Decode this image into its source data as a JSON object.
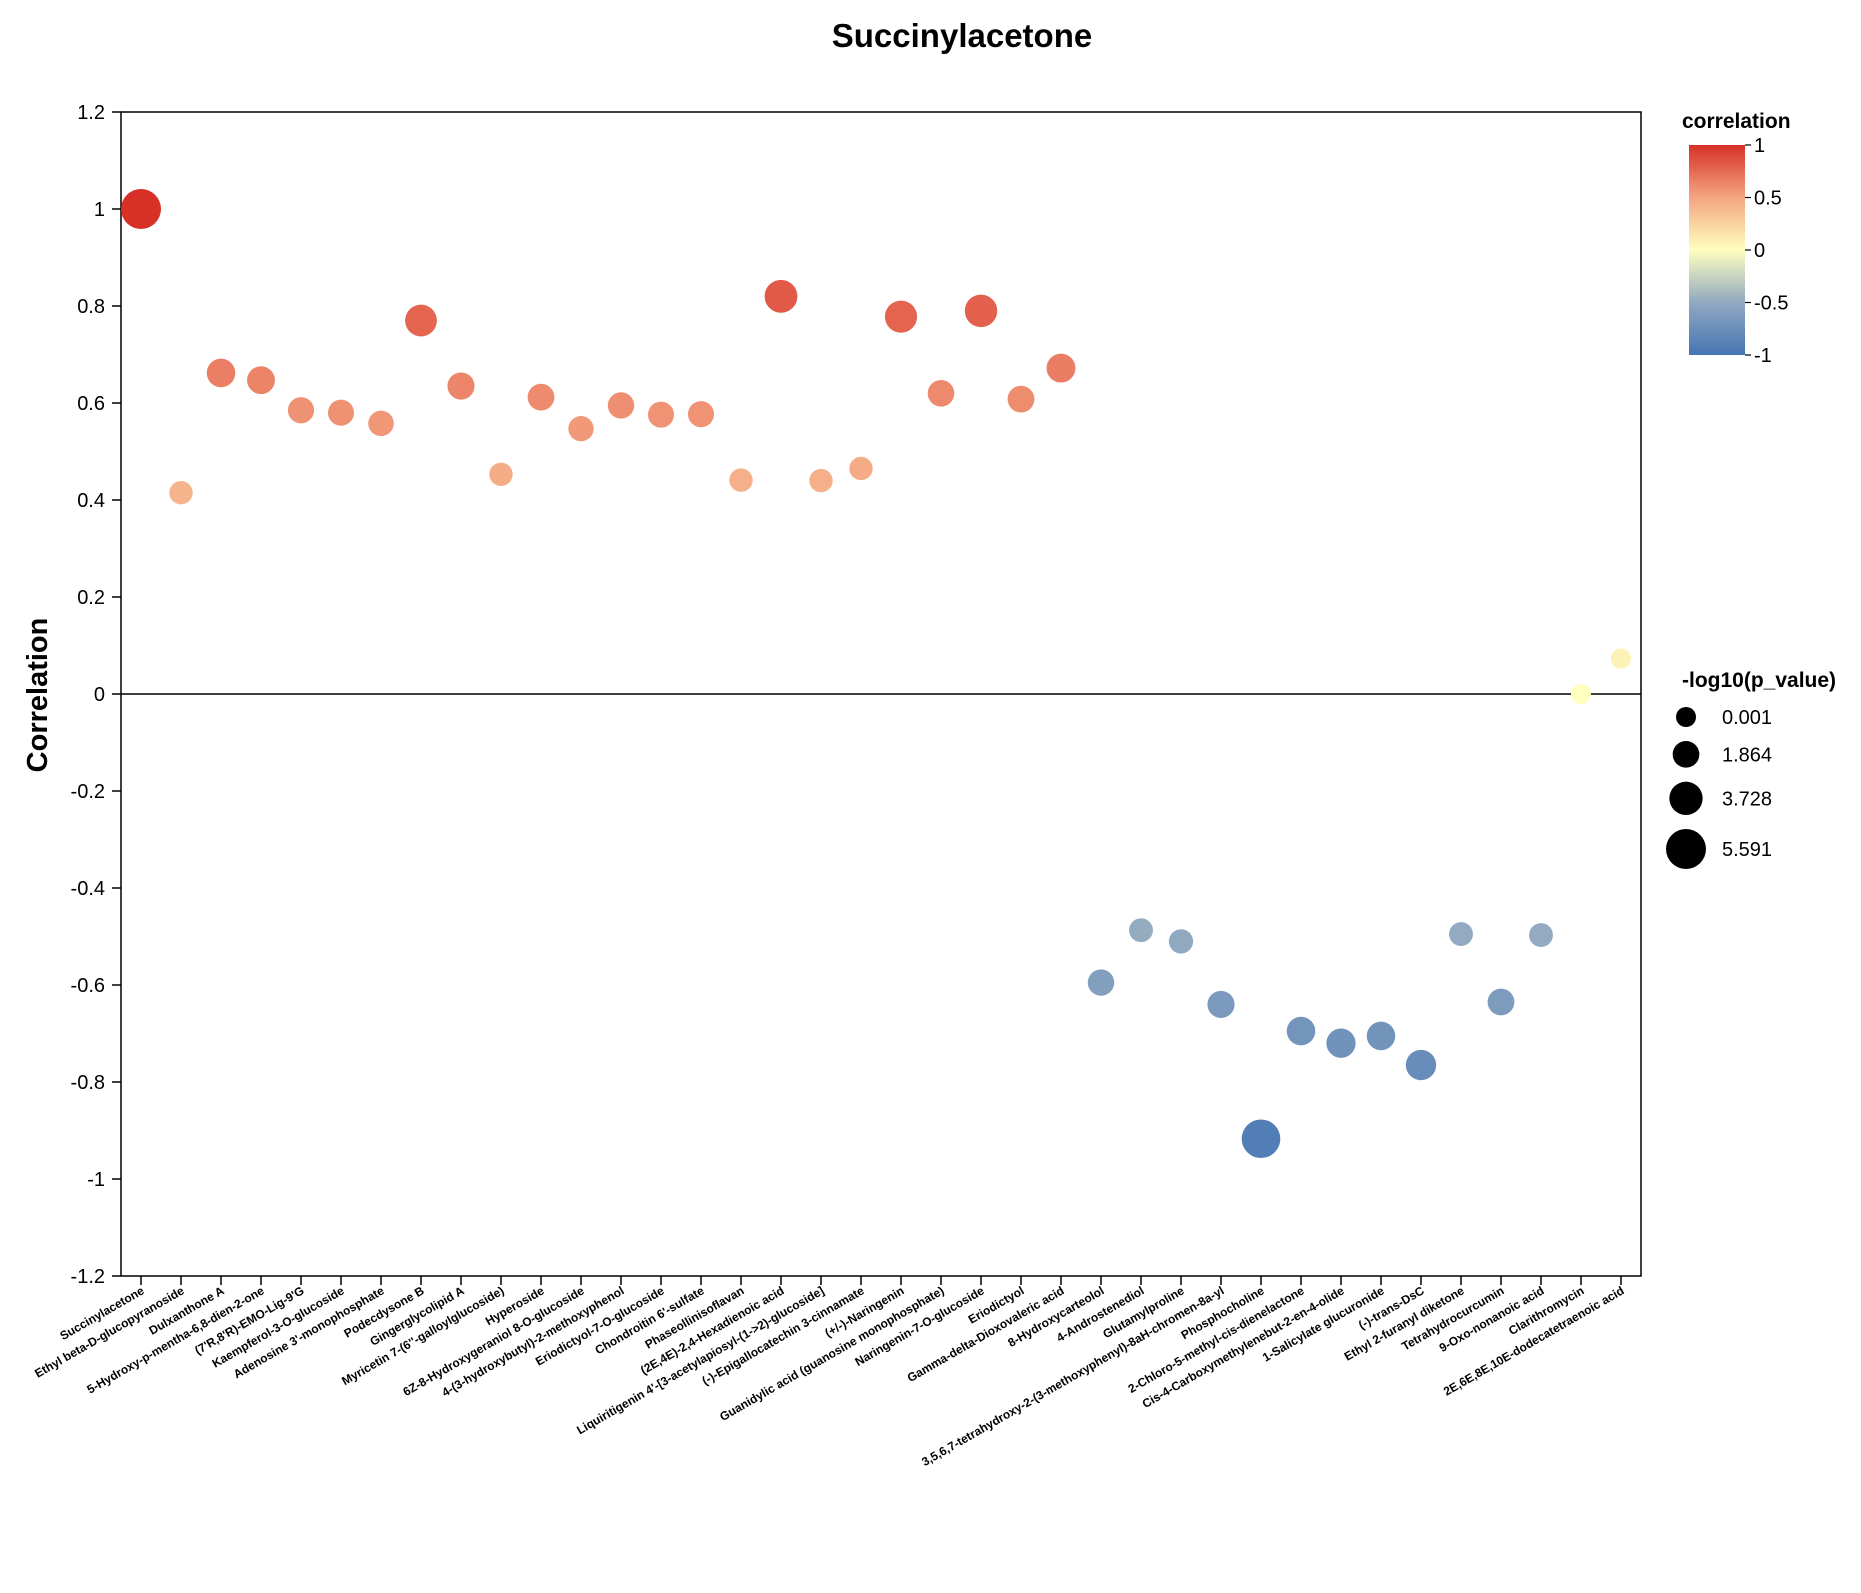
{
  "colors": {
    "positive": "#d73027",
    "neutral": "#ffffbf",
    "negative": "#4575b4",
    "axis": "#000000"
  },
  "chart_data": {
    "type": "scatter",
    "title": "Succinylacetone",
    "xlabel": "",
    "ylabel": "Correlation",
    "ylim": [
      -1.2,
      1.2
    ],
    "yticks": [
      1.2,
      1,
      0.8,
      0.6,
      0.4,
      0.2,
      0,
      -0.2,
      -0.4,
      -0.6,
      -0.8,
      -1,
      -1.2
    ],
    "ytick_labels": [
      "1.2",
      "1",
      "0.8",
      "0.6",
      "0.4",
      "0.2",
      "0",
      "-0.2",
      "-0.4",
      "-0.6",
      "-0.8",
      "-1",
      "-1.2"
    ],
    "reference_line_y": 0,
    "categories": [
      "Succinylacetone",
      "Ethyl beta-D-glucopyranoside",
      "Dulxanthone A",
      "5-Hydroxy-p-mentha-6,8-dien-2-one",
      "(7'R,8'R)-EMO-Lig-9'G",
      "Kaempferol-3-O-glucoside",
      "Adenosine 3'-monophosphate",
      "Podecdysone B",
      "Gingerglycolipid A",
      "Myricetin 7-(6''-galloylglucoside)",
      "Hyperoside",
      "6Z-8-Hydroxygeraniol 8-O-glucoside",
      "4-(3-hydroxybutyl)-2-methoxyphenol",
      "Eriodictyol-7-O-glucoside",
      "Chondroitin 6'-sulfate",
      "Phaseollinisoflavan",
      "(2E,4E)-2,4-Hexadienoic acid",
      "Liquiritigenin 4'-[3-acetylapiosyl-(1->2)-glucoside]",
      "(-)-Epigallocatechin 3-cinnamate",
      "(+/-)-Naringenin",
      "Guanidylic acid (guanosine monophosphate)",
      "Naringenin-7-O-glucoside",
      "Eriodictyol",
      "Gamma-delta-Dioxovaleric acid",
      "8-Hydroxycarteolol",
      "4-Androstenediol",
      "Glutamylproline",
      "3,5,6,7-tetrahydroxy-2-(3-methoxyphenyl)-8aH-chromen-8a-yl",
      "Phosphocholine",
      "2-Chloro-5-methyl-cis-dienelactone",
      "Cis-4-Carboxymethylenebut-2-en-4-olide",
      "1-Salicylate glucuronide",
      "(-)-trans-DsC",
      "Ethyl 2-furanyl diketone",
      "Tetrahydrocurcumin",
      "9-Oxo-nonanoic acid",
      "Clarithromycin",
      "2E,6E,8E,10E-dodecatetraenoic acid"
    ],
    "correlation": [
      1.0,
      0.415,
      0.662,
      0.647,
      0.585,
      0.58,
      0.558,
      0.77,
      0.635,
      0.453,
      0.612,
      0.547,
      0.595,
      0.576,
      0.577,
      0.441,
      0.82,
      0.44,
      0.465,
      0.778,
      0.62,
      0.79,
      0.608,
      0.672,
      -0.595,
      -0.487,
      -0.51,
      -0.64,
      -0.917,
      -0.695,
      -0.72,
      -0.705,
      -0.765,
      -0.495,
      -0.635,
      -0.497,
      0.0,
      0.073
    ],
    "neg_log10_p_value": [
      5.591,
      0.95,
      2.4,
      2.2,
      1.75,
      1.7,
      1.55,
      3.3,
      2.0,
      0.95,
      1.9,
      1.5,
      1.8,
      1.7,
      1.7,
      0.95,
      3.6,
      0.95,
      0.95,
      3.4,
      1.85,
      3.5,
      1.9,
      2.5,
      1.8,
      1.1,
      1.2,
      2.0,
      5.2,
      2.4,
      2.6,
      2.4,
      2.9,
      1.1,
      1.9,
      1.1,
      0.001,
      0.05
    ],
    "color_legend": {
      "title": "correlation",
      "ticks": [
        1,
        0.5,
        0,
        -0.5,
        -1
      ],
      "tick_labels": [
        "1",
        "0.5",
        "0",
        "-0.5",
        "-1"
      ]
    },
    "size_legend": {
      "title": "-log10(p_value)",
      "values": [
        0.001,
        1.864,
        3.728,
        5.591
      ],
      "labels": [
        "0.001",
        "1.864",
        "3.728",
        "5.591"
      ]
    }
  }
}
